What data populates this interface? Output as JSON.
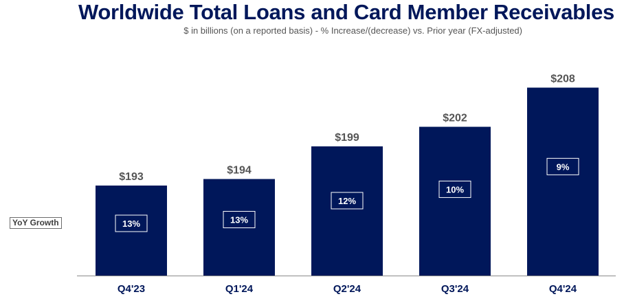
{
  "chart_data": {
    "type": "bar",
    "title": "Worldwide Total Loans and Card Member Receivables",
    "subtitle": "$ in billions (on a reported basis) - % Increase/(decrease) vs. Prior year (FX-adjusted)",
    "categories": [
      "Q4'23",
      "Q1'24",
      "Q2'24",
      "Q3'24",
      "Q4'24"
    ],
    "values": [
      193,
      194,
      199,
      202,
      208
    ],
    "value_labels": [
      "$193",
      "$194",
      "$199",
      "$202",
      "$208"
    ],
    "growth_label": "YoY Growth",
    "growth": [
      "13%",
      "13%",
      "12%",
      "10%",
      "9%"
    ],
    "bar_color": "#00175a",
    "value_label_color": "#555555",
    "grid": false,
    "legend": "none"
  }
}
